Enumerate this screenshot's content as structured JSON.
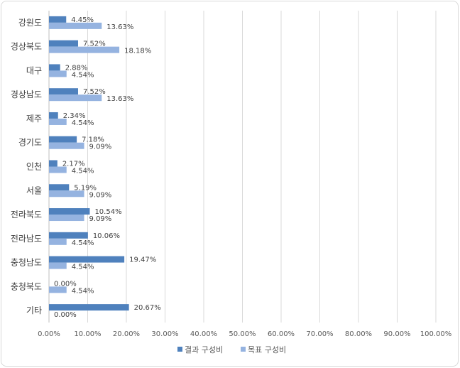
{
  "chart_data": {
    "type": "bar",
    "orientation": "horizontal",
    "categories": [
      "강원도",
      "경상북도",
      "대구",
      "경상남도",
      "제주",
      "경기도",
      "인천",
      "서울",
      "전라북도",
      "전라남도",
      "충청남도",
      "충청북도",
      "기타"
    ],
    "series": [
      {
        "name": "결과 구성비",
        "color": "#4f81bd",
        "values": [
          4.45,
          7.52,
          2.88,
          7.52,
          2.34,
          7.18,
          2.17,
          5.19,
          10.54,
          10.06,
          19.47,
          0.0,
          20.67
        ],
        "labels": [
          "4.45%",
          "7.52%",
          "2.88%",
          "7.52%",
          "2.34%",
          "7.18%",
          "2.17%",
          "5.19%",
          "10.54%",
          "10.06%",
          "19.47%",
          "0.00%",
          "20.67%"
        ]
      },
      {
        "name": "목표 구성비",
        "color": "#95b3e0",
        "values": [
          13.63,
          18.18,
          4.54,
          13.63,
          4.54,
          9.09,
          4.54,
          9.09,
          9.09,
          4.54,
          4.54,
          4.54,
          0.0
        ],
        "labels": [
          "13.63%",
          "18.18%",
          "4.54%",
          "13.63%",
          "4.54%",
          "9.09%",
          "4.54%",
          "9.09%",
          "9.09%",
          "4.54%",
          "4.54%",
          "4.54%",
          "0.00%"
        ]
      }
    ],
    "xlim": [
      0,
      100
    ],
    "xticks": [
      "0.00%",
      "10.00%",
      "20.00%",
      "30.00%",
      "40.00%",
      "50.00%",
      "60.00%",
      "70.00%",
      "80.00%",
      "90.00%",
      "100.00%"
    ],
    "grid": "vertical",
    "gridColor": "#d9d9d9",
    "legend_position": "bottom"
  }
}
